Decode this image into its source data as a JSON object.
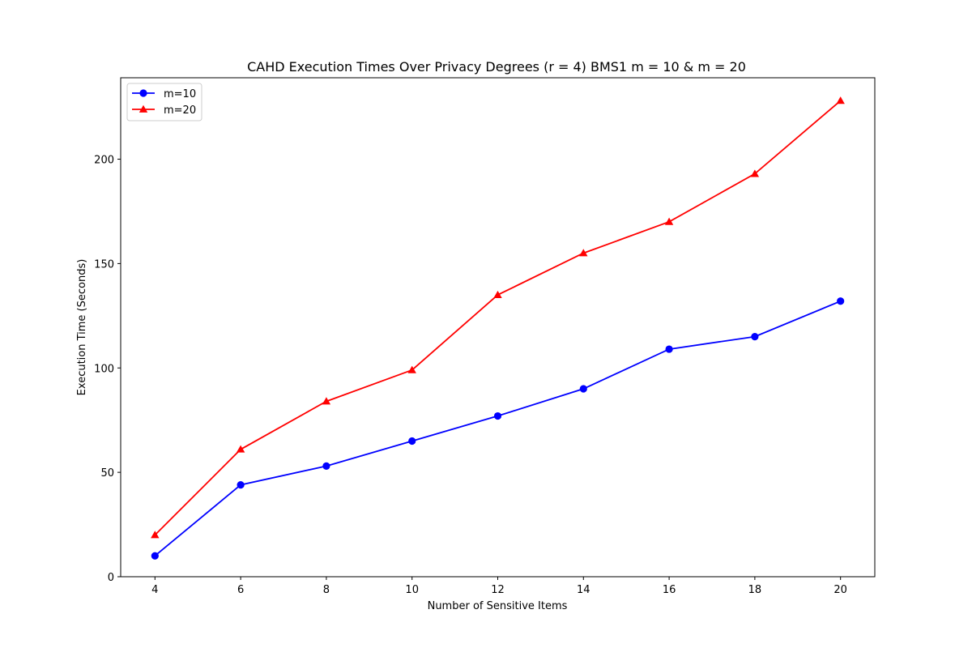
{
  "chart_data": {
    "type": "line",
    "title": "CAHD Execution Times Over Privacy Degrees (r = 4) BMS1 m = 10 & m = 20",
    "xlabel": "Number of Sensitive Items",
    "ylabel": "Execution Time (Seconds)",
    "x": [
      4,
      6,
      8,
      10,
      12,
      14,
      16,
      18,
      20
    ],
    "xticks": [
      4,
      6,
      8,
      10,
      12,
      14,
      16,
      18,
      20
    ],
    "yticks": [
      0,
      50,
      100,
      150,
      200
    ],
    "xlim": [
      3.2,
      20.8
    ],
    "ylim": [
      0,
      239
    ],
    "grid": false,
    "legend_position": "upper-left",
    "series": [
      {
        "name": "m=10",
        "color": "#0000ff",
        "marker": "circle",
        "values": [
          10,
          44,
          53,
          65,
          77,
          90,
          109,
          115,
          132
        ]
      },
      {
        "name": "m=20",
        "color": "#ff0000",
        "marker": "triangle",
        "values": [
          20,
          61,
          84,
          99,
          135,
          155,
          170,
          193,
          228
        ]
      }
    ]
  }
}
